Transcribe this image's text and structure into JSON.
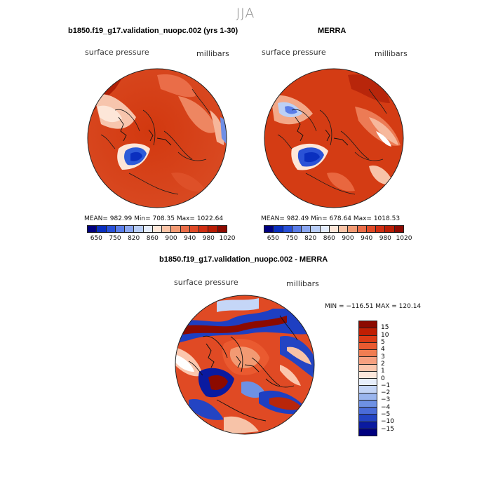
{
  "season": "JJA",
  "panels": {
    "left": {
      "title": "b1850.f19_g17.validation_nuopc.002 (yrs 1-30)",
      "variable": "surface pressure",
      "units": "millibars",
      "stats": "MEAN= 982.99  Min= 708.35  Max= 1022.64"
    },
    "right": {
      "title": "MERRA",
      "variable": "surface pressure",
      "units": "millibars",
      "stats": "MEAN= 982.49  Min= 678.64  Max= 1018.53"
    },
    "diff": {
      "title": "b1850.f19_g17.validation_nuopc.002 - MERRA",
      "variable": "surface pressure",
      "units": "millibars",
      "minmax": "MIN = −116.51 MAX = 120.14"
    }
  },
  "colorbar_abs": {
    "labels": [
      "650",
      "750",
      "820",
      "860",
      "900",
      "940",
      "980",
      "1020"
    ],
    "colors": [
      "#00007f",
      "#0a2fbf",
      "#2850d8",
      "#5a7de8",
      "#8aa6f0",
      "#b8cdf6",
      "#e4ecfb",
      "#fde6d8",
      "#f9c3a6",
      "#f29a73",
      "#ea6d48",
      "#df4a27",
      "#cf2e12",
      "#b81d05",
      "#8c0a00"
    ]
  },
  "colorbar_diff": {
    "labels": [
      "15",
      "10",
      "5",
      "4",
      "3",
      "2",
      "1",
      "0",
      "−1",
      "−2",
      "−3",
      "−4",
      "−5",
      "−10",
      "−15"
    ],
    "colors": [
      "#8c0a00",
      "#c01e03",
      "#dc3b16",
      "#ea5a30",
      "#f07d52",
      "#f6a080",
      "#fbc6ad",
      "#fde8dc",
      "#e7eefb",
      "#c3d4f6",
      "#9ab5ee",
      "#6e91e4",
      "#4a6cd8",
      "#2344c3",
      "#0a1aa0",
      "#00007f"
    ]
  }
}
